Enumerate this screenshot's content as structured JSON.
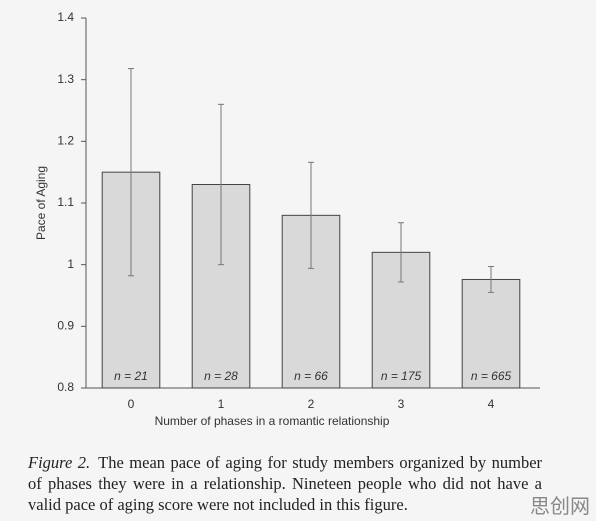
{
  "chart_data": {
    "type": "bar",
    "y_label": "Pace of Aging",
    "x_label": "Number of phases in a romantic relationship",
    "categories": [
      "0",
      "1",
      "2",
      "3",
      "4"
    ],
    "values": [
      1.15,
      1.13,
      1.08,
      1.02,
      0.976
    ],
    "errors": [
      0.168,
      0.13,
      0.086,
      0.048,
      0.021
    ],
    "annotations": [
      "n = 21",
      "n = 28",
      "n = 66",
      "n = 175",
      "n = 665"
    ],
    "color": "#d9d9d9",
    "ylim": [
      0.8,
      1.4
    ],
    "yticks": [
      0.8,
      0.9,
      1,
      1.1,
      1.2,
      1.3,
      1.4
    ],
    "grid": false
  },
  "caption": {
    "label": "Figure 2.",
    "text": "The mean pace of aging for study members organized by number of phases they were in a relationship. Nineteen people who did not have a valid pace of aging score were not included in this figure."
  },
  "watermark": "思创网"
}
